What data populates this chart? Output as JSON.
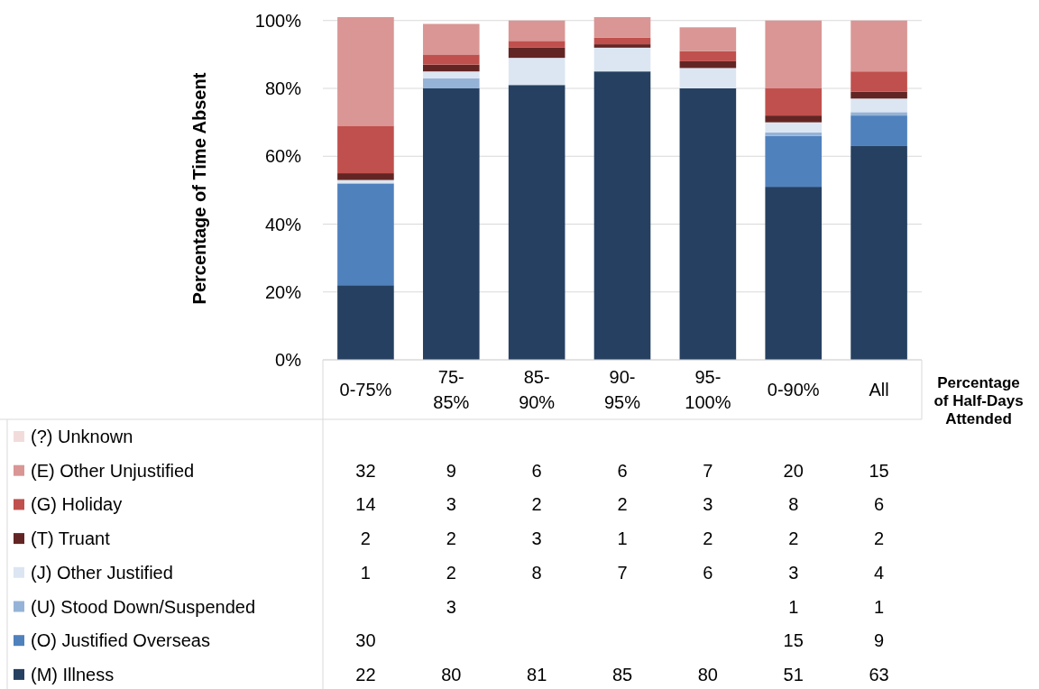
{
  "chart_data": {
    "type": "bar",
    "stacked": true,
    "ylabel": "Percentage of Time Absent",
    "xlabel": "Percentage of Half-Days Attended",
    "categories": [
      "0-75%",
      "75-85%",
      "85-90%",
      "90-95%",
      "95-100%",
      "0-90%",
      "All"
    ],
    "ylim": [
      0,
      101
    ],
    "yticks": [
      {
        "value": 0,
        "label": "0%"
      },
      {
        "value": 20,
        "label": "20%"
      },
      {
        "value": 40,
        "label": "40%"
      },
      {
        "value": 60,
        "label": "60%"
      },
      {
        "value": 80,
        "label": "80%"
      },
      {
        "value": 100,
        "label": "100%"
      }
    ],
    "grid": "y",
    "legend": "bottom left",
    "data_labels": true,
    "series": [
      {
        "name": "(M) Illness",
        "color": "#264061",
        "values": [
          22,
          80,
          81,
          85,
          80,
          51,
          63
        ]
      },
      {
        "name": "(O) Justified Overseas",
        "color": "#4f81bd",
        "values": [
          30,
          null,
          null,
          null,
          null,
          15,
          9
        ]
      },
      {
        "name": "(U) Stood Down/Suspended",
        "color": "#95b3d7",
        "values": [
          null,
          3,
          null,
          null,
          null,
          1,
          1
        ]
      },
      {
        "name": "(J) Other Justified",
        "color": "#dce6f2",
        "values": [
          1,
          2,
          8,
          7,
          6,
          3,
          4
        ]
      },
      {
        "name": "(T) Truant",
        "color": "#632523",
        "values": [
          2,
          2,
          3,
          1,
          2,
          2,
          2
        ]
      },
      {
        "name": "(G) Holiday",
        "color": "#c0504d",
        "values": [
          14,
          3,
          2,
          2,
          3,
          8,
          6
        ]
      },
      {
        "name": "(E) Other Unjustified",
        "color": "#d99694",
        "values": [
          32,
          9,
          6,
          6,
          7,
          20,
          15
        ]
      },
      {
        "name": "(?) Unknown",
        "color": "#f2dcdb",
        "values": [
          null,
          null,
          null,
          null,
          null,
          null,
          null
        ]
      }
    ]
  }
}
